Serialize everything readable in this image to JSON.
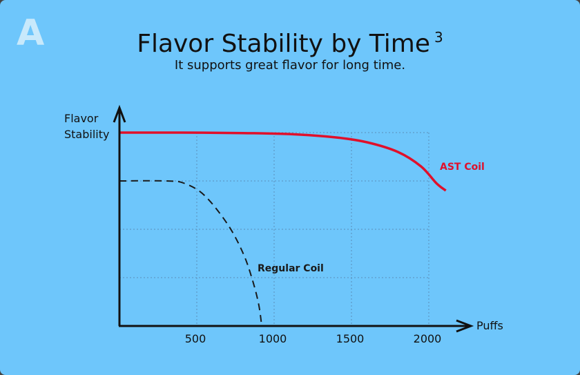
{
  "badge": "A",
  "chart_data": {
    "type": "line",
    "title": "Flavor Stability by Time",
    "title_superscript": "3",
    "subtitle": "It supports great flavor for long time.",
    "xlabel": "Puffs",
    "ylabel_lines": [
      "Flavor",
      "Stability"
    ],
    "xticks": [
      500,
      1000,
      1500,
      2000
    ],
    "xlim": [
      0,
      2250
    ],
    "ylim": [
      0,
      4
    ],
    "grid": true,
    "series": [
      {
        "name": "AST Coil",
        "color": "#e0102b",
        "style": "solid",
        "x": [
          0,
          400,
          800,
          1100,
          1400,
          1600,
          1800,
          1950,
          2050,
          2110
        ],
        "y": [
          4.0,
          4.0,
          3.99,
          3.97,
          3.9,
          3.8,
          3.6,
          3.3,
          2.95,
          2.8
        ]
      },
      {
        "name": "Regular Coil",
        "color": "#1a1a1a",
        "style": "dashed",
        "x": [
          0,
          300,
          420,
          550,
          700,
          800,
          860,
          900,
          920
        ],
        "y": [
          3.0,
          3.0,
          2.95,
          2.7,
          2.1,
          1.5,
          0.95,
          0.45,
          0.0
        ]
      }
    ]
  }
}
